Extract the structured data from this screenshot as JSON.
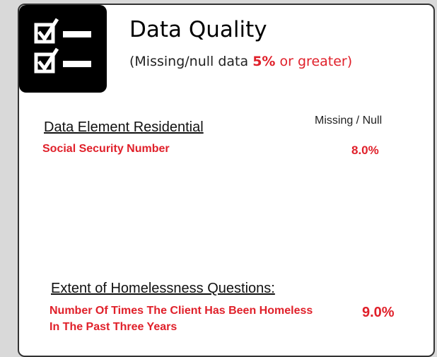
{
  "header": {
    "title": "Data Quality",
    "subtitle": {
      "before": "(Missing/null data",
      "highlight": "5%",
      "after": "or greater)"
    }
  },
  "column_header": "Missing / Null",
  "sections": [
    {
      "heading": "Data Element Residential",
      "rows": [
        {
          "label": "Social Security Number",
          "value": "8.0%"
        }
      ]
    },
    {
      "heading": "Extent of Homelessness Questions:",
      "rows": [
        {
          "label": "Number Of Times The Client Has Been Homeless In The Past Three Years",
          "value": "9.0%"
        }
      ]
    }
  ]
}
